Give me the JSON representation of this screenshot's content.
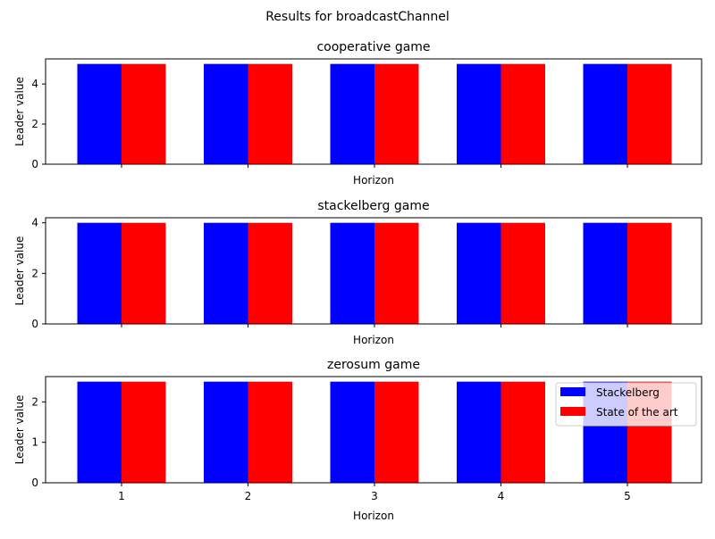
{
  "figure": {
    "suptitle": "Results for broadcastChannel"
  },
  "colors": {
    "Stackelberg": "#0000ff",
    "State of the art": "#ff0000"
  },
  "chart_data": [
    {
      "type": "bar",
      "title": "cooperative game",
      "xlabel": "Horizon",
      "ylabel": "Leader value",
      "categories": [
        "1",
        "2",
        "3",
        "4",
        "5"
      ],
      "series": [
        {
          "name": "Stackelberg",
          "values": [
            5,
            5,
            5,
            5,
            5
          ]
        },
        {
          "name": "State of the art",
          "values": [
            5,
            5,
            5,
            5,
            5
          ]
        }
      ],
      "ylim": [
        0,
        5.25
      ],
      "yticks": [
        0,
        2,
        4
      ],
      "show_xticklabels": false,
      "legend": false
    },
    {
      "type": "bar",
      "title": "stackelberg game",
      "xlabel": "Horizon",
      "ylabel": "Leader value",
      "categories": [
        "1",
        "2",
        "3",
        "4",
        "5"
      ],
      "series": [
        {
          "name": "Stackelberg",
          "values": [
            4,
            4,
            4,
            4,
            4
          ]
        },
        {
          "name": "State of the art",
          "values": [
            4,
            4,
            4,
            4,
            4
          ]
        }
      ],
      "ylim": [
        0,
        4.2
      ],
      "yticks": [
        0,
        2,
        4
      ],
      "show_xticklabels": false,
      "legend": false
    },
    {
      "type": "bar",
      "title": "zerosum game",
      "xlabel": "Horizon",
      "ylabel": "Leader value",
      "categories": [
        "1",
        "2",
        "3",
        "4",
        "5"
      ],
      "series": [
        {
          "name": "Stackelberg",
          "values": [
            2.5,
            2.5,
            2.5,
            2.5,
            2.5
          ]
        },
        {
          "name": "State of the art",
          "values": [
            2.5,
            2.5,
            2.5,
            2.5,
            2.5
          ]
        }
      ],
      "ylim": [
        0,
        2.625
      ],
      "yticks": [
        0,
        1,
        2
      ],
      "show_xticklabels": true,
      "legend": true,
      "legend_placement": "upper right"
    }
  ]
}
